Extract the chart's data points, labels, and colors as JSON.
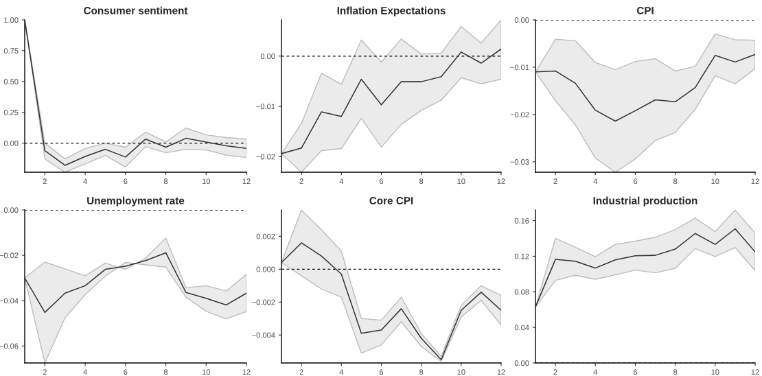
{
  "chart_data": [
    {
      "type": "line",
      "title": "Consumer sentiment",
      "x": [
        1,
        2,
        3,
        4,
        5,
        6,
        7,
        8,
        9,
        10,
        11,
        12
      ],
      "xlim": [
        1,
        12
      ],
      "xticks": [
        2,
        4,
        6,
        8,
        10,
        12
      ],
      "ylim": [
        -0.236,
        1.0
      ],
      "yticks": [
        {
          "value": 0,
          "label": "0.00"
        },
        {
          "value": 0.25,
          "label": "0.25"
        },
        {
          "value": 0.5,
          "label": "0.50"
        },
        {
          "value": 0.75,
          "label": "0.75"
        },
        {
          "value": 1.0,
          "label": "1.00"
        }
      ],
      "grid": false,
      "ref_lines": [
        {
          "axis": "y",
          "value": 0,
          "line_style": "dashed",
          "color": "#000000"
        }
      ],
      "series": [
        {
          "color": "#333333",
          "values": [
            1.0,
            -0.061,
            -0.18,
            -0.108,
            -0.05,
            -0.113,
            0.033,
            -0.033,
            0.039,
            0.009,
            -0.022,
            -0.043
          ],
          "lower": [
            1.0,
            -0.128,
            -0.236,
            -0.169,
            -0.1,
            -0.193,
            -0.028,
            -0.078,
            -0.05,
            -0.056,
            -0.097,
            -0.117
          ],
          "upper": [
            1.0,
            0.0,
            -0.128,
            -0.043,
            0.0,
            -0.033,
            0.089,
            0.009,
            0.123,
            0.067,
            0.045,
            0.033
          ]
        }
      ]
    },
    {
      "type": "line",
      "title": "Inflation Expectations",
      "x": [
        1,
        2,
        3,
        4,
        5,
        6,
        7,
        8,
        9,
        10,
        11,
        12
      ],
      "xlim": [
        1,
        12
      ],
      "xticks": [
        2,
        4,
        6,
        8,
        10,
        12
      ],
      "ylim": [
        -0.0231,
        0.0072
      ],
      "yticks": [
        {
          "value": -0.02,
          "label": "−0.02"
        },
        {
          "value": -0.01,
          "label": "−0.01"
        },
        {
          "value": 0,
          "label": "0.00"
        }
      ],
      "grid": false,
      "ref_lines": [
        {
          "axis": "y",
          "value": 0,
          "line_style": "dashed",
          "color": "#000000"
        }
      ],
      "series": [
        {
          "color": "#333333",
          "values": [
            -0.0194,
            -0.0183,
            -0.0111,
            -0.012,
            -0.0046,
            -0.0097,
            -0.0051,
            -0.0051,
            -0.0041,
            0.0008,
            -0.0014,
            0.0014
          ],
          "lower": [
            -0.0194,
            -0.0231,
            -0.0188,
            -0.0184,
            -0.0124,
            -0.0181,
            -0.0136,
            -0.0108,
            -0.0088,
            -0.0043,
            -0.0055,
            -0.0046
          ],
          "upper": [
            -0.0194,
            -0.0134,
            -0.0034,
            -0.0056,
            0.0032,
            -0.0012,
            0.0034,
            0.0004,
            0.0006,
            0.0059,
            0.0026,
            0.0072
          ]
        }
      ]
    },
    {
      "type": "line",
      "title": "CPI",
      "x": [
        1,
        2,
        3,
        4,
        5,
        6,
        7,
        8,
        9,
        10,
        11,
        12
      ],
      "xlim": [
        1,
        12
      ],
      "xticks": [
        2,
        4,
        6,
        8,
        10,
        12
      ],
      "ylim": [
        -0.0322,
        0.0
      ],
      "yticks": [
        {
          "value": -0.03,
          "label": "−0.03"
        },
        {
          "value": -0.02,
          "label": "−0.02"
        },
        {
          "value": -0.01,
          "label": "−0.01"
        },
        {
          "value": 0,
          "label": "0.00"
        }
      ],
      "grid": false,
      "ref_lines": [
        {
          "axis": "y",
          "value": 0,
          "line_style": "dashed",
          "color": "#000000"
        }
      ],
      "series": [
        {
          "color": "#333333",
          "values": [
            -0.011,
            -0.0108,
            -0.0134,
            -0.0191,
            -0.0214,
            -0.0192,
            -0.0169,
            -0.0173,
            -0.0143,
            -0.0075,
            -0.0089,
            -0.0073
          ],
          "lower": [
            -0.011,
            -0.0171,
            -0.0222,
            -0.0292,
            -0.0322,
            -0.0294,
            -0.0255,
            -0.0238,
            -0.0189,
            -0.0118,
            -0.0135,
            -0.0103
          ],
          "upper": [
            -0.011,
            -0.0041,
            -0.0044,
            -0.009,
            -0.0105,
            -0.0088,
            -0.0082,
            -0.0108,
            -0.0098,
            -0.003,
            -0.0042,
            -0.0043
          ]
        }
      ]
    },
    {
      "type": "line",
      "title": "Unemployment rate",
      "x": [
        1,
        2,
        3,
        4,
        5,
        6,
        7,
        8,
        9,
        10,
        11,
        12
      ],
      "xlim": [
        1,
        12
      ],
      "xticks": [
        2,
        4,
        6,
        8,
        10,
        12
      ],
      "ylim": [
        -0.0675,
        0.0
      ],
      "yticks": [
        {
          "value": -0.06,
          "label": "−0.06"
        },
        {
          "value": -0.04,
          "label": "−0.04"
        },
        {
          "value": -0.02,
          "label": "−0.02"
        },
        {
          "value": 0,
          "label": "0.00"
        }
      ],
      "grid": false,
      "ref_lines": [
        {
          "axis": "y",
          "value": 0,
          "line_style": "dashed",
          "color": "#000000"
        }
      ],
      "series": [
        {
          "color": "#333333",
          "values": [
            -0.03,
            -0.0452,
            -0.0367,
            -0.0334,
            -0.0262,
            -0.0248,
            -0.0223,
            -0.0189,
            -0.0364,
            -0.039,
            -0.0419,
            -0.0367
          ],
          "lower": [
            -0.03,
            -0.0675,
            -0.0476,
            -0.0373,
            -0.0292,
            -0.0231,
            -0.0242,
            -0.0252,
            -0.0385,
            -0.0447,
            -0.0481,
            -0.0448
          ],
          "upper": [
            -0.03,
            -0.023,
            -0.026,
            -0.029,
            -0.0234,
            -0.0262,
            -0.0212,
            -0.0124,
            -0.0343,
            -0.0334,
            -0.0357,
            -0.0284
          ]
        }
      ]
    },
    {
      "type": "line",
      "title": "Core CPI",
      "x": [
        1,
        2,
        3,
        4,
        5,
        6,
        7,
        8,
        9,
        10,
        11,
        12
      ],
      "xlim": [
        1,
        12
      ],
      "xticks": [
        2,
        4,
        6,
        8,
        10,
        12
      ],
      "ylim": [
        -0.0057,
        0.0036
      ],
      "yticks": [
        {
          "value": -0.004,
          "label": "−0.004"
        },
        {
          "value": -0.002,
          "label": "−0.002"
        },
        {
          "value": 0,
          "label": "0.000"
        },
        {
          "value": 0.002,
          "label": "0.002"
        }
      ],
      "grid": false,
      "ref_lines": [
        {
          "axis": "y",
          "value": 0,
          "line_style": "dashed",
          "color": "#000000"
        }
      ],
      "series": [
        {
          "color": "#333333",
          "values": [
            0.0004,
            0.0016,
            0.0008,
            -0.0003,
            -0.0039,
            -0.0037,
            -0.0024,
            -0.0042,
            -0.0055,
            -0.0025,
            -0.0014,
            -0.0025
          ],
          "lower": [
            0.0004,
            -0.0004,
            -0.0012,
            -0.0017,
            -0.0051,
            -0.0046,
            -0.0032,
            -0.0047,
            -0.0056,
            -0.0029,
            -0.0019,
            -0.0034
          ],
          "upper": [
            0.0004,
            0.0036,
            0.0024,
            0.0011,
            -0.003,
            -0.0031,
            -0.0017,
            -0.0039,
            -0.0053,
            -0.0022,
            -0.001,
            -0.0016
          ]
        }
      ]
    },
    {
      "type": "line",
      "title": "Industrial production",
      "x": [
        1,
        2,
        3,
        4,
        5,
        6,
        7,
        8,
        9,
        10,
        11,
        12
      ],
      "xlim": [
        1,
        12
      ],
      "xticks": [
        2,
        4,
        6,
        8,
        10,
        12
      ],
      "ylim": [
        0.0,
        0.172
      ],
      "yticks": [
        {
          "value": 0,
          "label": "0.00"
        },
        {
          "value": 0.04,
          "label": "0.04"
        },
        {
          "value": 0.08,
          "label": "0.08"
        },
        {
          "value": 0.12,
          "label": "0.12"
        },
        {
          "value": 0.16,
          "label": "0.16"
        }
      ],
      "grid": false,
      "ref_lines": [
        {
          "axis": "y",
          "value": 0,
          "line_style": "dashed",
          "color": "#000000"
        }
      ],
      "series": [
        {
          "color": "#333333",
          "values": [
            0.0628,
            0.1164,
            0.1144,
            0.1067,
            0.1159,
            0.1205,
            0.121,
            0.128,
            0.1456,
            0.1333,
            0.1508,
            0.1249
          ],
          "lower": [
            0.0628,
            0.0928,
            0.0985,
            0.0941,
            0.099,
            0.1044,
            0.1013,
            0.1064,
            0.1287,
            0.1197,
            0.1297,
            0.1038
          ],
          "upper": [
            0.0628,
            0.14,
            0.13,
            0.1195,
            0.1333,
            0.1369,
            0.1413,
            0.15,
            0.1628,
            0.1477,
            0.1718,
            0.1462
          ]
        }
      ]
    }
  ]
}
